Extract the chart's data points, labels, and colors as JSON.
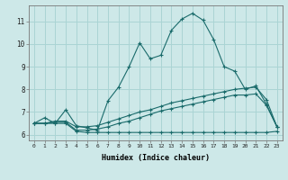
{
  "xlabel": "Humidex (Indice chaleur)",
  "bg_color": "#cde8e8",
  "grid_color": "#aad4d4",
  "line_color": "#1a6b6b",
  "xlim": [
    -0.5,
    23.5
  ],
  "ylim": [
    5.75,
    11.7
  ],
  "yticks": [
    6,
    7,
    8,
    9,
    10,
    11
  ],
  "xticks": [
    0,
    1,
    2,
    3,
    4,
    5,
    6,
    7,
    8,
    9,
    10,
    11,
    12,
    13,
    14,
    15,
    16,
    17,
    18,
    19,
    20,
    21,
    22,
    23
  ],
  "curve1": [
    6.5,
    6.75,
    6.5,
    7.1,
    6.4,
    6.3,
    6.2,
    7.5,
    8.1,
    9.0,
    10.05,
    9.35,
    9.5,
    10.6,
    11.1,
    11.35,
    11.05,
    10.2,
    9.0,
    8.8,
    8.0,
    8.15,
    7.35,
    6.35
  ],
  "curve2": [
    6.5,
    6.5,
    6.6,
    6.6,
    6.35,
    6.35,
    6.4,
    6.55,
    6.7,
    6.85,
    7.0,
    7.1,
    7.25,
    7.4,
    7.5,
    7.6,
    7.7,
    7.8,
    7.9,
    8.0,
    8.05,
    8.1,
    7.55,
    6.35
  ],
  "curve3": [
    6.5,
    6.5,
    6.55,
    6.55,
    6.2,
    6.2,
    6.25,
    6.35,
    6.5,
    6.6,
    6.75,
    6.9,
    7.05,
    7.15,
    7.25,
    7.35,
    7.45,
    7.55,
    7.65,
    7.75,
    7.75,
    7.8,
    7.3,
    6.35
  ],
  "curve4": [
    6.5,
    6.5,
    6.5,
    6.5,
    6.15,
    6.1,
    6.1,
    6.1,
    6.1,
    6.1,
    6.1,
    6.1,
    6.1,
    6.1,
    6.1,
    6.1,
    6.1,
    6.1,
    6.1,
    6.1,
    6.1,
    6.1,
    6.1,
    6.15
  ]
}
